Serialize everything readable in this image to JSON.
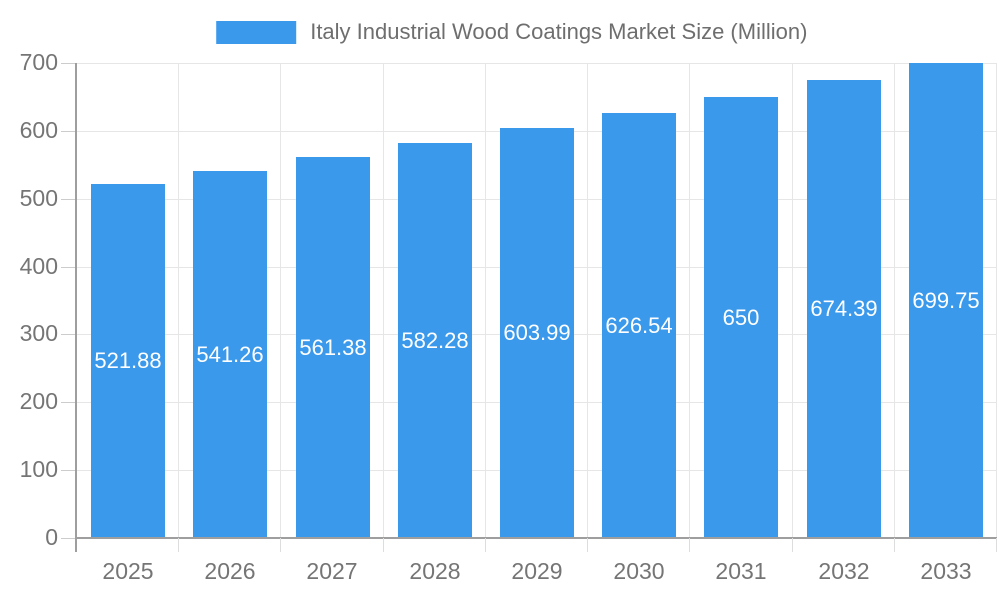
{
  "chart_data": {
    "type": "bar",
    "title": "Italy Industrial Wood Coatings Market Size (Million)",
    "series_name": "Italy Industrial Wood Coatings Market Size (Million)",
    "categories": [
      "2025",
      "2026",
      "2027",
      "2028",
      "2029",
      "2030",
      "2031",
      "2032",
      "2033"
    ],
    "values": [
      521.88,
      541.26,
      561.38,
      582.28,
      603.99,
      626.54,
      650,
      674.39,
      699.75
    ],
    "value_labels": [
      "521.88",
      "541.26",
      "561.38",
      "582.28",
      "603.99",
      "626.54",
      "650",
      "674.39",
      "699.75"
    ],
    "xlabel": "",
    "ylabel": "",
    "ylim": [
      0,
      700
    ],
    "ytick_step": 100,
    "yticks": [
      "0",
      "100",
      "200",
      "300",
      "400",
      "500",
      "600",
      "700"
    ],
    "grid": true,
    "legend_position": "top",
    "colors": {
      "bar": "#3B99EC",
      "value_label": "#FFFFFF",
      "axis_text": "#757575",
      "legend_text": "#6E6E6E",
      "grid_line": "#E6E6E6",
      "axis_line": "#9E9E9E"
    }
  }
}
